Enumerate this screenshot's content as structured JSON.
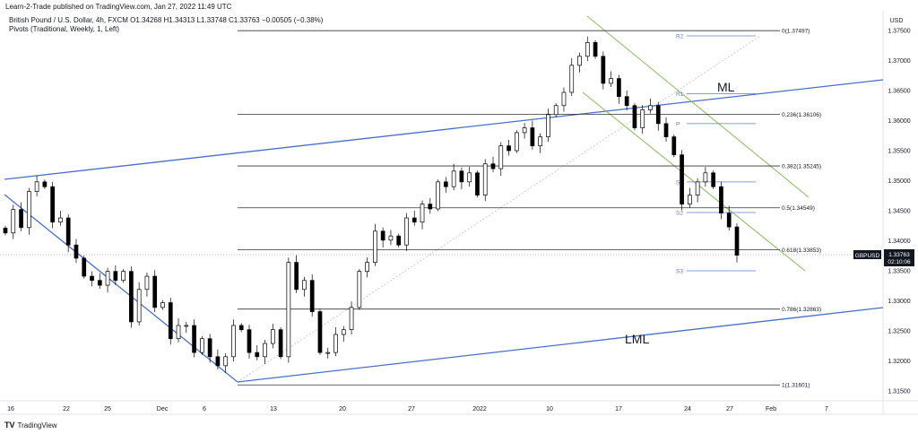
{
  "header": {
    "publisher": "Learn-2-Trade published on TradingView.com, Jan 27, 2022 11:49 UTC",
    "symbol_line": "British Pound / U.S. Dollar, 4h, FXCM  O1.34268  H1.34313  L1.33748  C1.33763  −0.00505 (−0.38%)",
    "style_line": "Pivots (Traditional, Weekly, 1, Left)"
  },
  "footer": {
    "brand": "TradingView",
    "logo": "TV"
  },
  "price_tag": {
    "symbol": "GBPUSD",
    "price": "1.33763",
    "countdown": "02:10:06",
    "value": 1.33763
  },
  "annotations": {
    "ml": "ML",
    "lml": "LML"
  },
  "colors": {
    "trendline": "#4a6fc9",
    "channel": "#8fbf6a",
    "pivot": "#5b7fd1",
    "fib": "#333333",
    "candle_down": "#000000",
    "candle_up": "#ffffff"
  },
  "chart_data": {
    "type": "candlestick",
    "title": "British Pound / U.S. Dollar, 4h, FXCM",
    "ylabel": "USD",
    "ylim": [
      1.3125,
      1.3775
    ],
    "y_ticks": [
      "1.37500",
      "1.37000",
      "1.36500",
      "1.36000",
      "1.35500",
      "1.35000",
      "1.34500",
      "1.34000",
      "1.33500",
      "1.33000",
      "1.32500",
      "1.32000",
      "1.31500"
    ],
    "x_ticks": [
      "16",
      "22",
      "25",
      "Dec",
      "6",
      "13",
      "20",
      "27",
      "2022",
      "10",
      "17",
      "24",
      "27",
      "Feb",
      "7"
    ],
    "grid": false,
    "closes": [
      1.3413,
      1.3452,
      1.3422,
      1.3482,
      1.3498,
      1.349,
      1.3431,
      1.3438,
      1.3393,
      1.3371,
      1.3341,
      1.3334,
      1.3326,
      1.3349,
      1.3334,
      1.3349,
      1.3265,
      1.3319,
      1.3341,
      1.3289,
      1.3297,
      1.3237,
      1.3259,
      1.3259,
      1.3214,
      1.3237,
      1.3207,
      1.3192,
      1.3207,
      1.3259,
      1.3252,
      1.3214,
      1.3207,
      1.3229,
      1.3252,
      1.3207,
      1.3364,
      1.3319,
      1.3334,
      1.3282,
      1.3214,
      1.3214,
      1.3244,
      1.3252,
      1.3289,
      1.3349,
      1.3364,
      1.3416,
      1.3401,
      1.3408,
      1.3393,
      1.3438,
      1.3431,
      1.3461,
      1.3453,
      1.3498,
      1.349,
      1.3516,
      1.3498,
      1.3513,
      1.3476,
      1.3528,
      1.352,
      1.3558,
      1.355,
      1.358,
      1.3588,
      1.3558,
      1.3573,
      1.361,
      1.3625,
      1.3647,
      1.3692,
      1.3707,
      1.373,
      1.3707,
      1.3662,
      1.367,
      1.364,
      1.3625,
      1.3588,
      1.3618,
      1.3625,
      1.3595,
      1.3573,
      1.3543,
      1.3461,
      1.3476,
      1.3498,
      1.3513,
      1.349,
      1.3446,
      1.3423,
      1.3376
    ],
    "fibonacci": [
      {
        "label": "0(1.37497)",
        "value": 1.37497
      },
      {
        "label": "0.236(1.36106)",
        "value": 1.36106
      },
      {
        "label": "0.382(1.35245)",
        "value": 1.35245
      },
      {
        "label": "0.5(1.34549)",
        "value": 1.34549
      },
      {
        "label": "0.618(1.33853)",
        "value": 1.33853
      },
      {
        "label": "0.786(1.32863)",
        "value": 1.32863
      },
      {
        "label": "1(1.31601)",
        "value": 1.31601
      }
    ],
    "pivots": [
      {
        "label": "R2",
        "value": 1.3741
      },
      {
        "label": "R1",
        "value": 1.3645
      },
      {
        "label": "P",
        "value": 1.3595
      },
      {
        "label": "S1",
        "value": 1.3498
      },
      {
        "label": "S2",
        "value": 1.3447
      },
      {
        "label": "S3",
        "value": 1.335
      }
    ]
  }
}
